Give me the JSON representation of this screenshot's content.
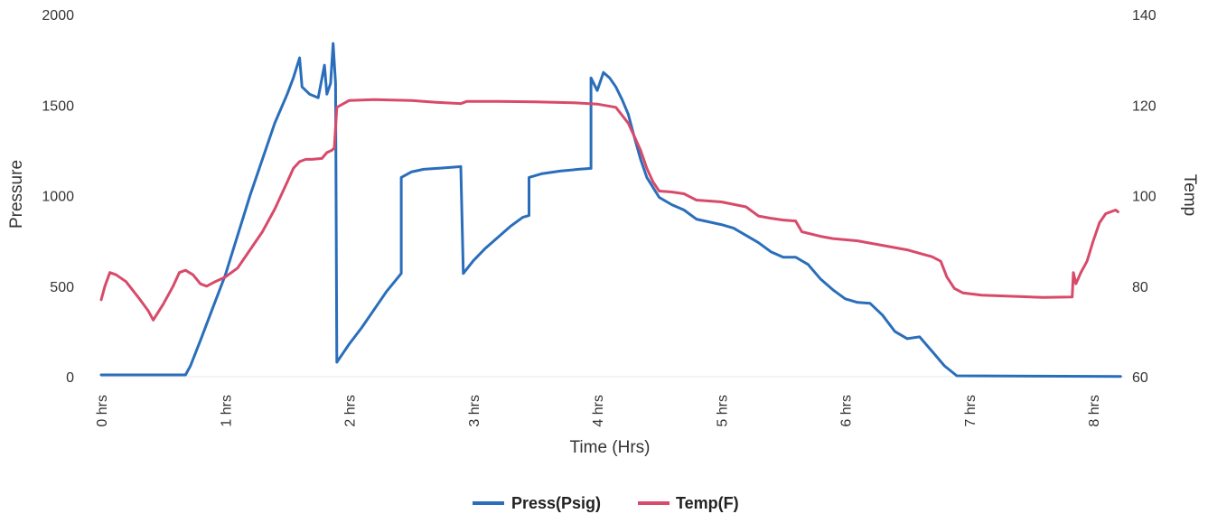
{
  "chart_data": {
    "type": "line",
    "xlabel": "Time (Hrs)",
    "ylabel_left": "Pressure",
    "ylabel_right": "Temp",
    "xlim": [
      0,
      8.25
    ],
    "ylim_left": [
      0,
      2000
    ],
    "ylim_right": [
      60,
      140
    ],
    "x_ticks": [
      0,
      1,
      2,
      3,
      4,
      5,
      6,
      7,
      8
    ],
    "x_tick_labels": [
      "0 hrs",
      "1 hrs",
      "2 hrs",
      "3 hrs",
      "4 hrs",
      "5 hrs",
      "6 hrs",
      "7 hrs",
      "8 hrs"
    ],
    "y_left_ticks": [
      0,
      500,
      1000,
      1500,
      2000
    ],
    "y_left_tick_labels": [
      "0",
      "500",
      "1000",
      "1500",
      "2000"
    ],
    "y_right_ticks": [
      60,
      80,
      100,
      120,
      140
    ],
    "y_right_tick_labels": [
      "60",
      "80",
      "100",
      "120",
      "140"
    ],
    "grid": false,
    "legend_position": "bottom",
    "series": [
      {
        "name": "Press(Psig)",
        "axis": "left",
        "color": "#2a6ebb",
        "points": [
          [
            0,
            10
          ],
          [
            0.5,
            10
          ],
          [
            0.68,
            10
          ],
          [
            0.72,
            60
          ],
          [
            0.8,
            200
          ],
          [
            0.9,
            380
          ],
          [
            1.0,
            560
          ],
          [
            1.1,
            780
          ],
          [
            1.2,
            1000
          ],
          [
            1.3,
            1200
          ],
          [
            1.4,
            1400
          ],
          [
            1.5,
            1560
          ],
          [
            1.55,
            1650
          ],
          [
            1.6,
            1760
          ],
          [
            1.62,
            1600
          ],
          [
            1.68,
            1560
          ],
          [
            1.75,
            1540
          ],
          [
            1.8,
            1720
          ],
          [
            1.82,
            1560
          ],
          [
            1.85,
            1620
          ],
          [
            1.87,
            1840
          ],
          [
            1.89,
            1620
          ],
          [
            1.9,
            80
          ],
          [
            2.0,
            180
          ],
          [
            2.1,
            270
          ],
          [
            2.2,
            370
          ],
          [
            2.3,
            470
          ],
          [
            2.42,
            570
          ],
          [
            2.42,
            1100
          ],
          [
            2.5,
            1130
          ],
          [
            2.6,
            1145
          ],
          [
            2.75,
            1152
          ],
          [
            2.9,
            1160
          ],
          [
            2.92,
            570
          ],
          [
            3.0,
            640
          ],
          [
            3.1,
            710
          ],
          [
            3.2,
            770
          ],
          [
            3.3,
            830
          ],
          [
            3.4,
            880
          ],
          [
            3.45,
            890
          ],
          [
            3.45,
            1100
          ],
          [
            3.55,
            1120
          ],
          [
            3.7,
            1135
          ],
          [
            3.85,
            1145
          ],
          [
            3.95,
            1150
          ],
          [
            3.95,
            1650
          ],
          [
            4.0,
            1580
          ],
          [
            4.05,
            1680
          ],
          [
            4.1,
            1650
          ],
          [
            4.15,
            1600
          ],
          [
            4.2,
            1530
          ],
          [
            4.25,
            1450
          ],
          [
            4.3,
            1320
          ],
          [
            4.35,
            1200
          ],
          [
            4.4,
            1100
          ],
          [
            4.5,
            990
          ],
          [
            4.6,
            950
          ],
          [
            4.7,
            920
          ],
          [
            4.8,
            870
          ],
          [
            5.0,
            840
          ],
          [
            5.1,
            820
          ],
          [
            5.2,
            780
          ],
          [
            5.3,
            740
          ],
          [
            5.4,
            690
          ],
          [
            5.5,
            660
          ],
          [
            5.6,
            660
          ],
          [
            5.7,
            620
          ],
          [
            5.8,
            540
          ],
          [
            5.9,
            480
          ],
          [
            6.0,
            430
          ],
          [
            6.1,
            410
          ],
          [
            6.2,
            405
          ],
          [
            6.3,
            340
          ],
          [
            6.4,
            250
          ],
          [
            6.5,
            210
          ],
          [
            6.6,
            220
          ],
          [
            6.7,
            140
          ],
          [
            6.8,
            60
          ],
          [
            6.9,
            5
          ],
          [
            7.5,
            3
          ],
          [
            8.0,
            2
          ],
          [
            8.22,
            1
          ]
        ]
      },
      {
        "name": "Temp(F)",
        "axis": "right",
        "color": "#d84a6a",
        "points": [
          [
            0,
            77
          ],
          [
            0.03,
            80
          ],
          [
            0.07,
            83
          ],
          [
            0.12,
            82.5
          ],
          [
            0.2,
            81
          ],
          [
            0.3,
            77.5
          ],
          [
            0.38,
            74.5
          ],
          [
            0.42,
            72.5
          ],
          [
            0.5,
            76
          ],
          [
            0.58,
            80
          ],
          [
            0.63,
            83
          ],
          [
            0.68,
            83.5
          ],
          [
            0.74,
            82.5
          ],
          [
            0.8,
            80.5
          ],
          [
            0.85,
            80
          ],
          [
            0.92,
            81
          ],
          [
            1.0,
            82
          ],
          [
            1.1,
            84
          ],
          [
            1.2,
            88
          ],
          [
            1.3,
            92
          ],
          [
            1.4,
            97
          ],
          [
            1.5,
            103
          ],
          [
            1.55,
            106
          ],
          [
            1.6,
            107.5
          ],
          [
            1.65,
            108
          ],
          [
            1.7,
            108
          ],
          [
            1.78,
            108.2
          ],
          [
            1.82,
            109.5
          ],
          [
            1.86,
            110
          ],
          [
            1.88,
            110.5
          ],
          [
            1.9,
            119.5
          ],
          [
            2.0,
            121
          ],
          [
            2.2,
            121.2
          ],
          [
            2.5,
            121
          ],
          [
            2.7,
            120.6
          ],
          [
            2.9,
            120.3
          ],
          [
            2.95,
            120.8
          ],
          [
            3.2,
            120.8
          ],
          [
            3.5,
            120.7
          ],
          [
            3.8,
            120.5
          ],
          [
            4.0,
            120.2
          ],
          [
            4.15,
            119.5
          ],
          [
            4.25,
            116
          ],
          [
            4.3,
            113
          ],
          [
            4.35,
            110
          ],
          [
            4.4,
            106
          ],
          [
            4.45,
            103
          ],
          [
            4.5,
            101
          ],
          [
            4.6,
            100.8
          ],
          [
            4.7,
            100.4
          ],
          [
            4.8,
            99
          ],
          [
            5.0,
            98.6
          ],
          [
            5.2,
            97.5
          ],
          [
            5.3,
            95.5
          ],
          [
            5.4,
            95
          ],
          [
            5.5,
            94.6
          ],
          [
            5.6,
            94.4
          ],
          [
            5.65,
            92
          ],
          [
            5.8,
            91
          ],
          [
            5.9,
            90.5
          ],
          [
            6.1,
            90
          ],
          [
            6.3,
            89
          ],
          [
            6.5,
            88
          ],
          [
            6.7,
            86.5
          ],
          [
            6.77,
            85.5
          ],
          [
            6.82,
            82
          ],
          [
            6.88,
            79.5
          ],
          [
            6.95,
            78.5
          ],
          [
            7.1,
            78
          ],
          [
            7.4,
            77.7
          ],
          [
            7.6,
            77.5
          ],
          [
            7.83,
            77.6
          ],
          [
            7.84,
            83
          ],
          [
            7.86,
            80.5
          ],
          [
            7.9,
            83
          ],
          [
            7.95,
            85.5
          ],
          [
            8.0,
            90
          ],
          [
            8.05,
            94
          ],
          [
            8.1,
            96
          ],
          [
            8.15,
            96.5
          ],
          [
            8.18,
            96.8
          ],
          [
            8.2,
            96.4
          ]
        ]
      }
    ]
  }
}
